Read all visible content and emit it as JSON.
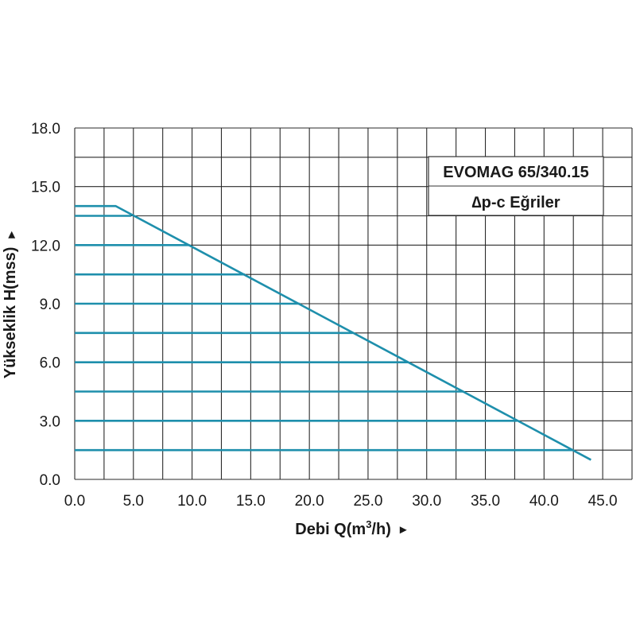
{
  "chart_data": {
    "type": "line",
    "title": "EVOMAG 65/340.15",
    "subtitle": "∆p-c Eğriler",
    "xlabel_prefix": "Debi Q(m",
    "xlabel_sup": "3",
    "xlabel_suffix": "/h)",
    "xlabel_arrow": "►",
    "ylabel": "Yükseklik H(mss)",
    "ylabel_arrow": "►",
    "xlim": [
      0,
      47.5
    ],
    "ylim": [
      0,
      18
    ],
    "x_grid_step": 2.5,
    "y_grid_step": 1.5,
    "x_ticks": [
      "0.0",
      "5.0",
      "10.0",
      "15.0",
      "20.0",
      "25.0",
      "30.0",
      "35.0",
      "40.0",
      "45.0"
    ],
    "x_tick_values": [
      0,
      5,
      10,
      15,
      20,
      25,
      30,
      35,
      40,
      45
    ],
    "y_ticks": [
      "0.0",
      "3.0",
      "6.0",
      "9.0",
      "12.0",
      "15.0",
      "18.0"
    ],
    "y_tick_values": [
      0,
      3,
      6,
      9,
      12,
      15,
      18
    ],
    "grid": true,
    "legend_position": "top-right",
    "line_color": "#1e8fac",
    "grid_color": "#2a2a2a",
    "series": [
      {
        "x": [
          0,
          3.5,
          44
        ],
        "y": [
          14,
          14,
          1
        ]
      },
      {
        "x": [
          0,
          4.8
        ],
        "y": [
          13.5,
          13.5
        ]
      },
      {
        "x": [
          0,
          9.8
        ],
        "y": [
          12,
          12
        ]
      },
      {
        "x": [
          0,
          14.5
        ],
        "y": [
          10.5,
          10.5
        ]
      },
      {
        "x": [
          0,
          19.2
        ],
        "y": [
          9,
          9
        ]
      },
      {
        "x": [
          0,
          23.7
        ],
        "y": [
          7.5,
          7.5
        ]
      },
      {
        "x": [
          0,
          28.4
        ],
        "y": [
          6,
          6
        ]
      },
      {
        "x": [
          0,
          33.1
        ],
        "y": [
          4.5,
          4.5
        ]
      },
      {
        "x": [
          0,
          37.7
        ],
        "y": [
          3,
          3
        ]
      },
      {
        "x": [
          0,
          42.5
        ],
        "y": [
          1.5,
          1.5
        ]
      }
    ]
  }
}
